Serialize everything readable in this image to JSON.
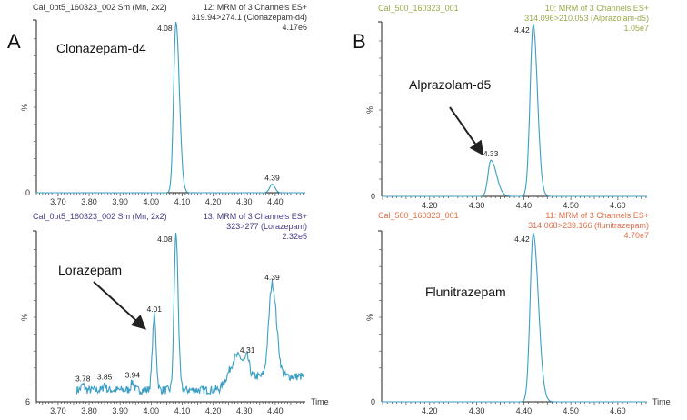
{
  "colors": {
    "trace": "#3b9ec4",
    "axis": "#222222",
    "arrow": "#222222"
  },
  "chart_data": [
    {
      "type": "line",
      "panel_label": "A",
      "compound_label": "Clonazepam-d4",
      "header_left": "Cal_0pt5_160323_002 Sm (Mn, 2x2)",
      "header_right": [
        "12: MRM of 3 Channels ES+",
        "319.94>274.1 (Clonazepam-d4)",
        "4.17e6"
      ],
      "header_color": "#333333",
      "ylabel": "%",
      "y_zero_label": "0",
      "xlabel": "",
      "xlim": [
        3.63,
        4.497
      ],
      "ylim": [
        0,
        100
      ],
      "xticks": [
        "3.70",
        "3.80",
        "3.90",
        "4.00",
        "4.10",
        "4.20",
        "4.30",
        "4.40"
      ],
      "trace_range": [
        3.63,
        4.497
      ],
      "baseline": 0,
      "noise": 0,
      "peaks": [
        {
          "rt": 4.08,
          "height": 100,
          "sigma_left": 0.0075,
          "sigma_right": 0.011,
          "label": "4.08"
        },
        {
          "rt": 4.39,
          "height": 5,
          "sigma_left": 0.008,
          "sigma_right": 0.009,
          "label": "4.39"
        }
      ]
    },
    {
      "type": "line",
      "panel_label": "",
      "compound_label": "Lorazepam",
      "header_left": "Cal_0pt5_160323_002 Sm (Mn, 2x2)",
      "header_right": [
        "13: MRM of 3 Channels ES+",
        "323>277 (Lorazepam)",
        "2.32e5"
      ],
      "header_color": "#4a3a86",
      "ylabel": "%",
      "y_zero_label": "6",
      "xlabel": "Time",
      "xlim": [
        3.63,
        4.497
      ],
      "ylim": [
        0,
        100
      ],
      "xticks": [
        "3.70",
        "3.80",
        "3.90",
        "4.00",
        "4.10",
        "4.20",
        "4.30",
        "4.40"
      ],
      "trace_range": [
        3.76,
        4.49
      ],
      "baseline": 7,
      "noise": 2.5,
      "peaks": [
        {
          "rt": 3.78,
          "height": 3,
          "sigma_left": 0.005,
          "sigma_right": 0.005,
          "label": "3.78"
        },
        {
          "rt": 3.85,
          "height": 4,
          "sigma_left": 0.004,
          "sigma_right": 0.004,
          "label": "3.85"
        },
        {
          "rt": 3.94,
          "height": 5,
          "sigma_left": 0.005,
          "sigma_right": 0.005,
          "label": "3.94"
        },
        {
          "rt": 4.01,
          "height": 44,
          "sigma_left": 0.006,
          "sigma_right": 0.006,
          "label": "4.01"
        },
        {
          "rt": 4.08,
          "height": 93,
          "sigma_left": 0.006,
          "sigma_right": 0.007,
          "label": "4.08"
        },
        {
          "rt": 4.28,
          "height": 12,
          "sigma_left": 0.025,
          "sigma_right": 0.02,
          "label": ""
        },
        {
          "rt": 4.31,
          "height": 8,
          "sigma_left": 0.006,
          "sigma_right": 0.006,
          "label": "4.31"
        },
        {
          "rt": 4.39,
          "height": 55,
          "sigma_left": 0.011,
          "sigma_right": 0.014,
          "label": "4.39"
        }
      ]
    },
    {
      "type": "line",
      "panel_label": "B",
      "compound_label": "Alprazolam-d5",
      "header_left": "Cal_500_160323_001",
      "header_right": [
        "10: MRM of 3 Channels ES+",
        "314.096>210.053 (Alprazolam-d5)",
        "1.05e7"
      ],
      "header_color": "#9aa84a",
      "ylabel": "%",
      "y_zero_label": "0",
      "xlabel": "",
      "xlim": [
        4.098,
        4.662
      ],
      "ylim": [
        0,
        100
      ],
      "xticks": [
        "4.20",
        "4.30",
        "4.40",
        "4.50",
        "4.60"
      ],
      "trace_range": [
        4.098,
        4.662
      ],
      "baseline": 0,
      "noise": 0,
      "peaks": [
        {
          "rt": 4.33,
          "height": 21,
          "sigma_left": 0.006,
          "sigma_right": 0.012,
          "label": "4.33"
        },
        {
          "rt": 4.42,
          "height": 100,
          "sigma_left": 0.0065,
          "sigma_right": 0.009,
          "label": "4.42"
        }
      ]
    },
    {
      "type": "line",
      "panel_label": "",
      "compound_label": "Flunitrazepam",
      "header_left": "Cal_500_160323_001",
      "header_right": [
        "11: MRM of 3 Channels ES+",
        "314.068>239.166 (flunitrazepam)",
        "4.70e7"
      ],
      "header_color": "#e0704a",
      "ylabel": "%",
      "y_zero_label": "0",
      "xlabel": "Time",
      "xlim": [
        4.098,
        4.662
      ],
      "ylim": [
        0,
        100
      ],
      "xticks": [
        "4.20",
        "4.30",
        "4.40",
        "4.50",
        "4.60"
      ],
      "trace_range": [
        4.098,
        4.662
      ],
      "baseline": 0,
      "noise": 0,
      "peaks": [
        {
          "rt": 4.42,
          "height": 100,
          "sigma_left": 0.0065,
          "sigma_right": 0.011,
          "label": "4.42"
        }
      ]
    }
  ]
}
